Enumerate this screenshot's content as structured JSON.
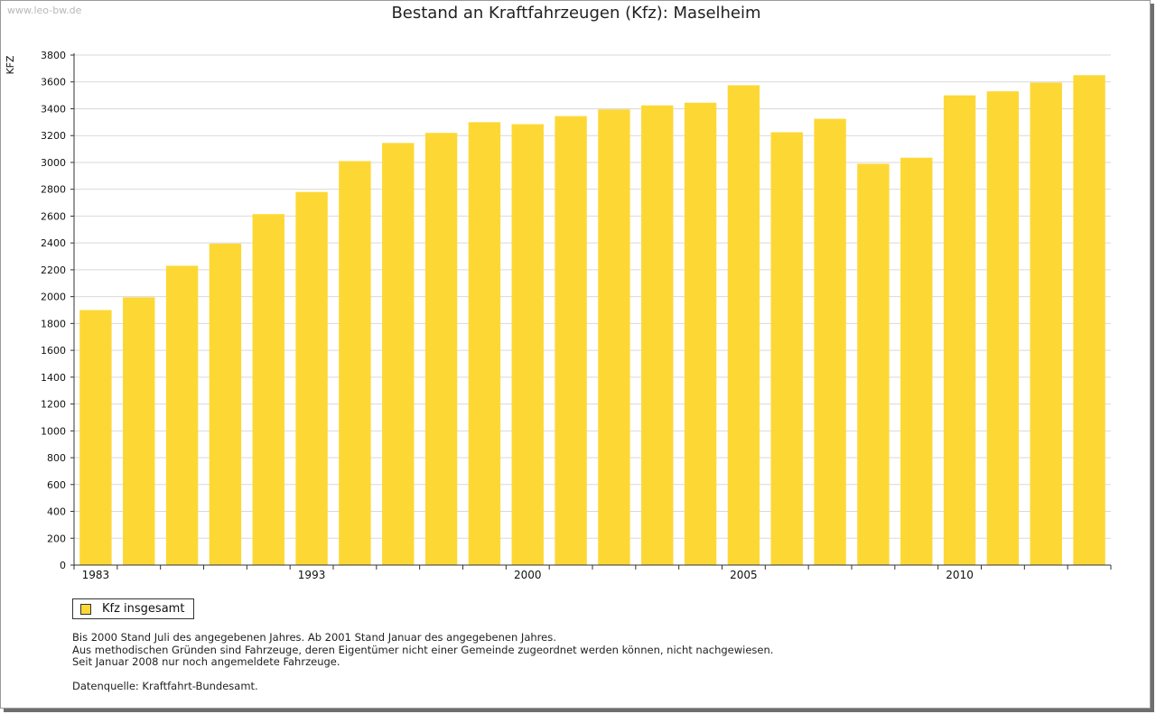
{
  "watermark": "www.leo-bw.de",
  "colors": {
    "bar": "#FDD835",
    "grid": "#d9d9d9",
    "axis": "#333333"
  },
  "legend": {
    "label": "Kfz insgesamt"
  },
  "notes": [
    "Bis 2000 Stand Juli des angegebenen Jahres. Ab 2001 Stand Januar des angegebenen Jahres.",
    "Aus methodischen Gründen sind Fahrzeuge, deren Eigentümer nicht einer Gemeinde zugeordnet werden können, nicht nachgewiesen.",
    "Seit Januar 2008 nur noch angemeldete Fahrzeuge."
  ],
  "source": "Datenquelle: Kraftfahrt-Bundesamt.",
  "chart_data": {
    "type": "bar",
    "title": "Bestand an Kraftfahrzeugen (Kfz): Maselheim",
    "xlabel": "",
    "ylabel": "KFZ",
    "ylim": [
      0,
      3800
    ],
    "ytick_step": 200,
    "grid": true,
    "legend_position": "bottom-left",
    "x_tick_labels": [
      {
        "index": 0,
        "label": "1983"
      },
      {
        "index": 5,
        "label": "1993"
      },
      {
        "index": 10,
        "label": "2000"
      },
      {
        "index": 15,
        "label": "2005"
      },
      {
        "index": 20,
        "label": "2010"
      }
    ],
    "series": [
      {
        "name": "Kfz insgesamt",
        "values": [
          1900,
          1995,
          2230,
          2395,
          2615,
          2780,
          3010,
          3145,
          3220,
          3300,
          3285,
          3345,
          3395,
          3425,
          3445,
          3575,
          3225,
          3325,
          2990,
          3035,
          3500,
          3530,
          3595,
          3650
        ]
      }
    ]
  }
}
